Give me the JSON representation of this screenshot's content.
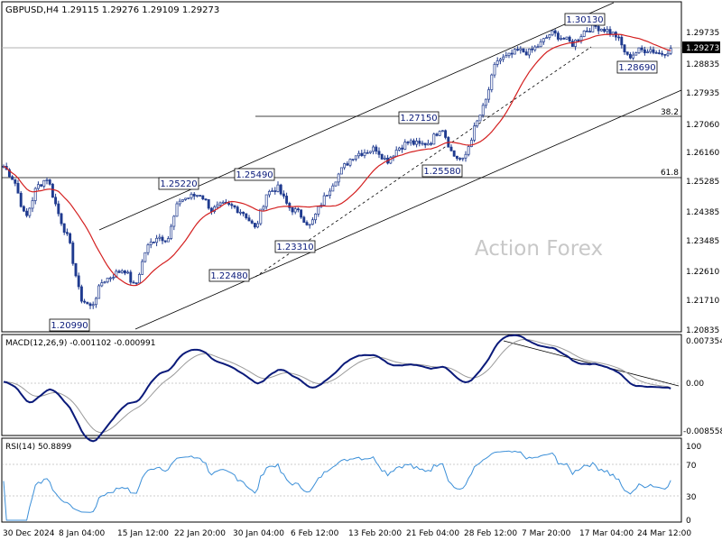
{
  "main_panel": {
    "header": "GBPUSD,H4  1.29115 1.29276 1.29109 1.29273",
    "price_ticks": [
      "1.29735",
      "1.28835",
      "1.27935",
      "1.27060",
      "1.26160",
      "1.25285",
      "1.24385",
      "1.23485",
      "1.22610",
      "1.21710",
      "1.20835"
    ],
    "current_price": "1.29273",
    "watermark": "Action Forex",
    "fib_levels": [
      {
        "label": "38.2",
        "price": 1.2725
      },
      {
        "label": "61.8",
        "price": 1.2538
      }
    ],
    "annotations": [
      {
        "label": "1.20990",
        "price": 1.2099,
        "date": "10 Jan"
      },
      {
        "label": "1.25220",
        "price": 1.2522,
        "date": "21 Jan"
      },
      {
        "label": "1.25490",
        "price": 1.2549,
        "date": "27 Jan"
      },
      {
        "label": "1.22480",
        "price": 1.2248,
        "date": "3 Feb"
      },
      {
        "label": "1.23310",
        "price": 1.2331,
        "date": "10 Feb"
      },
      {
        "label": "1.27150",
        "price": 1.2715,
        "date": "26 Feb"
      },
      {
        "label": "1.25580",
        "price": 1.2558,
        "date": "28 Feb"
      },
      {
        "label": "1.30130",
        "price": 1.3013,
        "date": "12 Mar"
      },
      {
        "label": "1.28690",
        "price": 1.2869,
        "date": "21 Mar"
      }
    ]
  },
  "macd_panel": {
    "header": "MACD(12,26,9) -0.001102 -0.000991",
    "ticks": [
      "0.007354",
      "0.00",
      "-0.008558"
    ]
  },
  "rsi_panel": {
    "header": "RSI(14) 50.8899",
    "ticks": [
      "100",
      "70",
      "30",
      "0"
    ]
  },
  "time_axis": [
    "30 Dec 2024",
    "8 Jan 04:00",
    "15 Jan 12:00",
    "22 Jan 20:00",
    "30 Jan 04:00",
    "6 Feb 12:00",
    "13 Feb 20:00",
    "21 Feb 04:00",
    "28 Feb 12:00",
    "7 Mar 20:00",
    "17 Mar 04:00",
    "24 Mar 12:00"
  ],
  "colors": {
    "candles": "#1f3a8f",
    "sma": "#d42020",
    "macd": "#0a1a7a",
    "signal": "#9a9a9a",
    "rsi": "#3b8fd8",
    "channel": "#000000"
  },
  "chart_data": {
    "type": "candlestick",
    "symbol": "GBPUSD",
    "timeframe": "H4",
    "ylim": [
      1.2061,
      1.3065
    ],
    "price_anchors": [
      [
        "30 Dec",
        1.2565
      ],
      [
        "1 Jan",
        1.252
      ],
      [
        "3 Jan",
        1.24
      ],
      [
        "6 Jan",
        1.25
      ],
      [
        "7 Jan",
        1.253
      ],
      [
        "8 Jan",
        1.242
      ],
      [
        "9 Jan",
        1.233
      ],
      [
        "10 Jan",
        1.216
      ],
      [
        "13 Jan",
        1.213
      ],
      [
        "14 Jan",
        1.221
      ],
      [
        "15 Jan",
        1.223
      ],
      [
        "16 Jan",
        1.225
      ],
      [
        "17 Jan",
        1.219
      ],
      [
        "20 Jan",
        1.231
      ],
      [
        "21 Jan",
        1.235
      ],
      [
        "22 Jan",
        1.234
      ],
      [
        "23 Jan",
        1.246
      ],
      [
        "24 Jan",
        1.247
      ],
      [
        "27 Jan",
        1.248
      ],
      [
        "28 Jan",
        1.243
      ],
      [
        "29 Jan",
        1.2445
      ],
      [
        "30 Jan",
        1.244
      ],
      [
        "31 Jan",
        1.242
      ],
      [
        "3 Feb",
        1.237
      ],
      [
        "4 Feb",
        1.248
      ],
      [
        "5 Feb",
        1.25
      ],
      [
        "6 Feb",
        1.244
      ],
      [
        "7 Feb",
        1.242
      ],
      [
        "10 Feb",
        1.238
      ],
      [
        "11 Feb",
        1.245
      ],
      [
        "12 Feb",
        1.251
      ],
      [
        "13 Feb",
        1.256
      ],
      [
        "14 Feb",
        1.26
      ],
      [
        "17 Feb",
        1.261
      ],
      [
        "18 Feb",
        1.262
      ],
      [
        "19 Feb",
        1.258
      ],
      [
        "20 Feb",
        1.262
      ],
      [
        "21 Feb",
        1.264
      ],
      [
        "24 Feb",
        1.263
      ],
      [
        "25 Feb",
        1.264
      ],
      [
        "26 Feb",
        1.269
      ],
      [
        "27 Feb",
        1.26
      ],
      [
        "28 Feb",
        1.258
      ],
      [
        "3 Mar",
        1.268
      ],
      [
        "4 Mar",
        1.276
      ],
      [
        "5 Mar",
        1.289
      ],
      [
        "6 Mar",
        1.29
      ],
      [
        "7 Mar",
        1.292
      ],
      [
        "10 Mar",
        1.2915
      ],
      [
        "11 Mar",
        1.294
      ],
      [
        "12 Mar",
        1.2975
      ],
      [
        "13 Mar",
        1.296
      ],
      [
        "14 Mar",
        1.294
      ],
      [
        "17 Mar",
        1.298
      ],
      [
        "18 Mar",
        1.2995
      ],
      [
        "19 Mar",
        1.2985
      ],
      [
        "20 Mar",
        1.2965
      ],
      [
        "21 Mar",
        1.29
      ],
      [
        "24 Mar",
        1.292
      ],
      [
        "25 Mar",
        1.2925
      ],
      [
        "26 Mar",
        1.291
      ],
      [
        "27 Mar",
        1.2927
      ]
    ],
    "last_candle": {
      "open": 1.29115,
      "high": 1.29276,
      "low": 1.29109,
      "close": 1.29273
    },
    "macd": {
      "value": -0.001102,
      "signal": -0.000991,
      "ylim": [
        -0.008558,
        0.007354
      ]
    },
    "rsi": {
      "value": 50.8899,
      "levels": [
        30,
        70
      ],
      "ylim": [
        0,
        100
      ]
    }
  }
}
